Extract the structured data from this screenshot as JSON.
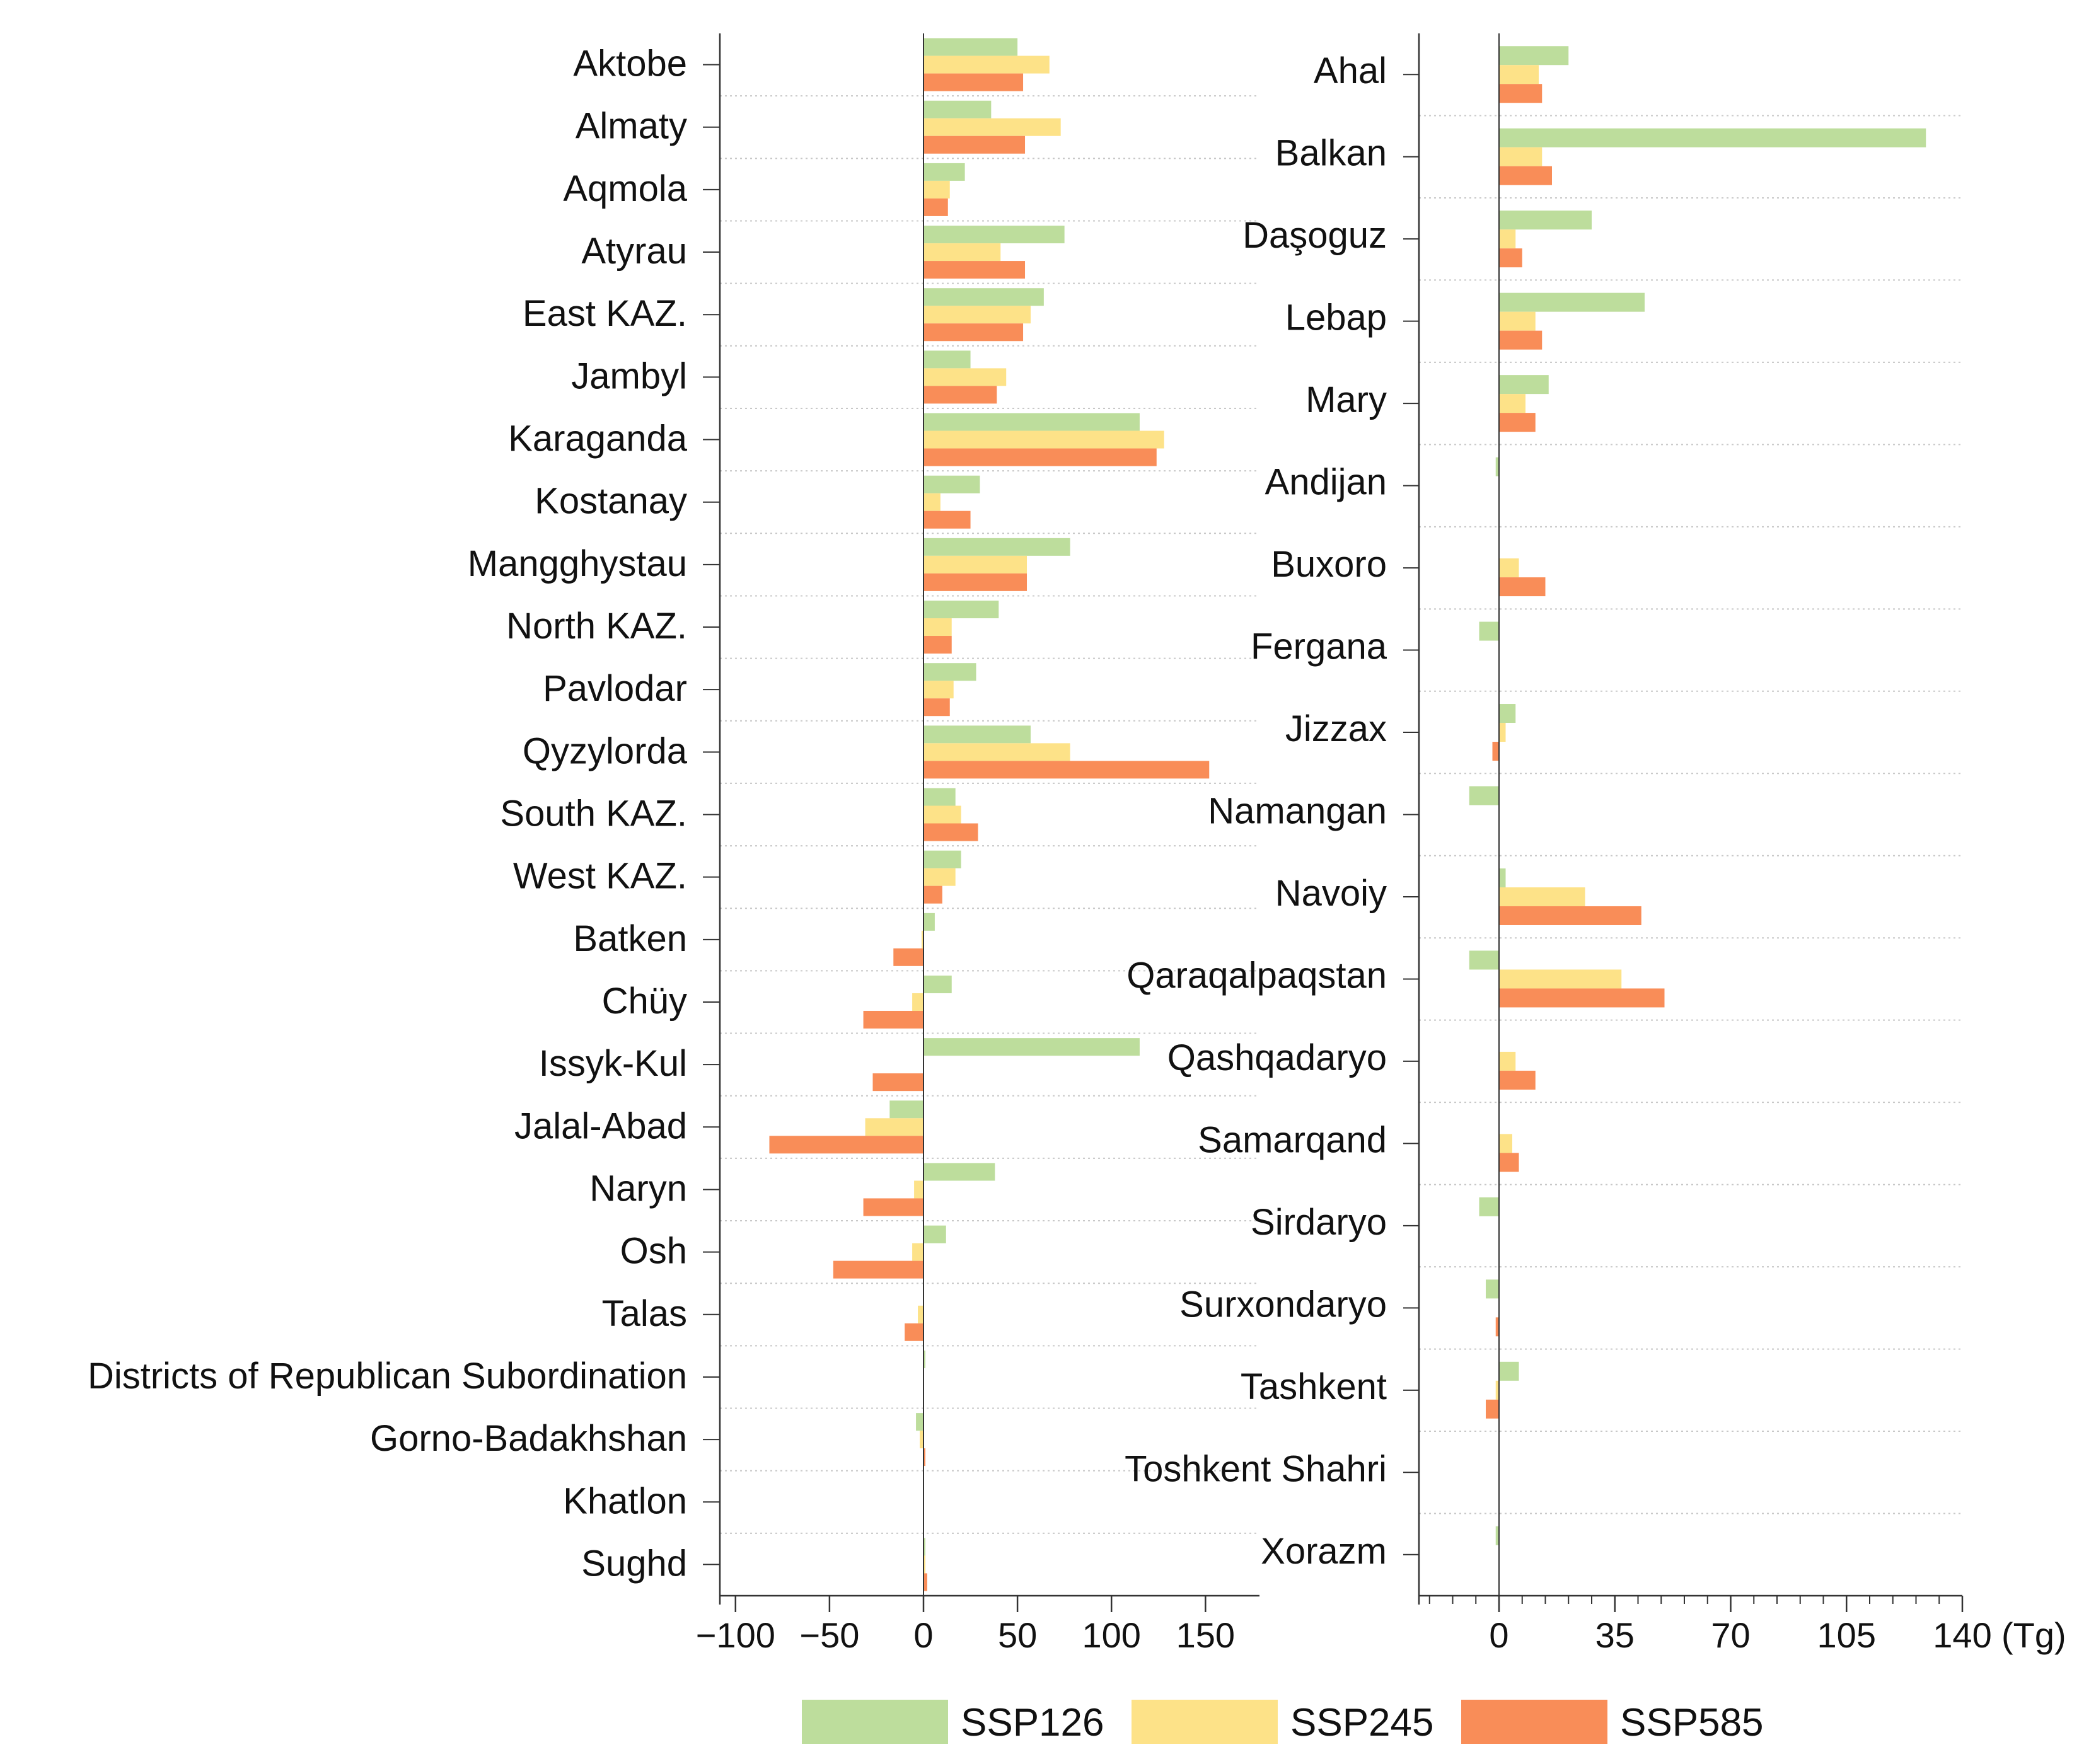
{
  "colors": {
    "SSP126": "#bddd9c",
    "SSP245": "#fde288",
    "SSP585": "#f98d58",
    "axis": "#333333",
    "grid": "#c8c8c8"
  },
  "chart_data": [
    {
      "type": "bar",
      "orientation": "horizontal",
      "name": "left-panel",
      "categories": [
        "Aktobe",
        "Almaty",
        "Aqmola",
        "Atyrau",
        "East KAZ.",
        "Jambyl",
        "Karaganda",
        "Kostanay",
        "Mangghystau",
        "North KAZ.",
        "Pavlodar",
        "Qyzylorda",
        "South KAZ.",
        "West KAZ.",
        "Batken",
        "Chüy",
        "Issyk-Kul",
        "Jalal-Abad",
        "Naryn",
        "Osh",
        "Talas",
        "Districts of Republican Subordination",
        "Gorno-Badakhshan",
        "Khatlon",
        "Sughd"
      ],
      "series": [
        {
          "name": "SSP126",
          "values": [
            50,
            36,
            22,
            75,
            64,
            25,
            115,
            30,
            78,
            40,
            28,
            57,
            17,
            20,
            6,
            15,
            115,
            -18,
            38,
            12,
            0,
            1,
            -4,
            0,
            1
          ]
        },
        {
          "name": "SSP245",
          "values": [
            67,
            73,
            14,
            41,
            57,
            44,
            128,
            9,
            55,
            15,
            16,
            78,
            20,
            17,
            -1,
            -6,
            0,
            -31,
            -5,
            -6,
            -3,
            0,
            -2,
            0,
            1
          ]
        },
        {
          "name": "SSP585",
          "values": [
            53,
            54,
            13,
            54,
            53,
            39,
            124,
            25,
            55,
            15,
            14,
            152,
            29,
            10,
            -16,
            -32,
            -27,
            -82,
            -32,
            -48,
            -10,
            0,
            1,
            0,
            2
          ]
        }
      ],
      "xlim": [
        -110,
        180
      ],
      "xticks": [
        -100,
        -50,
        0,
        50,
        100,
        150
      ],
      "xtick_labels": [
        "−100",
        "−50",
        "0",
        "50",
        "100",
        "150"
      ],
      "grid": "horizontal-dotted"
    },
    {
      "type": "bar",
      "orientation": "horizontal",
      "name": "right-panel",
      "categories": [
        "Ahal",
        "Balkan",
        "Daşoguz",
        "Lebap",
        "Mary",
        "Andijan",
        "Buxoro",
        "Fergana",
        "Jizzax",
        "Namangan",
        "Navoiy",
        "Qaraqalpaqstan",
        "Qashqadaryo",
        "Samarqand",
        "Sirdaryo",
        "Surxondaryo",
        "Tashkent",
        "Toshkent Shahri",
        "Xorazm"
      ],
      "series": [
        {
          "name": "SSP126",
          "values": [
            21,
            129,
            28,
            44,
            15,
            -1,
            0,
            -6,
            5,
            -9,
            2,
            -9,
            0,
            0,
            -6,
            -4,
            6,
            0,
            -1
          ]
        },
        {
          "name": "SSP245",
          "values": [
            12,
            13,
            5,
            11,
            8,
            0,
            6,
            0,
            2,
            0,
            26,
            37,
            5,
            4,
            0,
            0,
            -1,
            0,
            0
          ]
        },
        {
          "name": "SSP585",
          "values": [
            13,
            16,
            7,
            13,
            11,
            0,
            14,
            0,
            -2,
            0,
            43,
            50,
            11,
            6,
            0,
            -1,
            -4,
            0,
            0
          ]
        }
      ],
      "xlim": [
        -24,
        140
      ],
      "xticks": [
        0,
        35,
        70,
        105,
        140
      ],
      "xtick_labels": [
        "0",
        "35",
        "70",
        "105",
        "140"
      ],
      "minor_step": 7,
      "unit_label": "(Tg)",
      "grid": "horizontal-dotted"
    }
  ],
  "legend": {
    "placement": "bottom-center",
    "entries": [
      {
        "key": "SSP126",
        "label": "SSP126"
      },
      {
        "key": "SSP245",
        "label": "SSP245"
      },
      {
        "key": "SSP585",
        "label": "SSP585"
      }
    ]
  }
}
